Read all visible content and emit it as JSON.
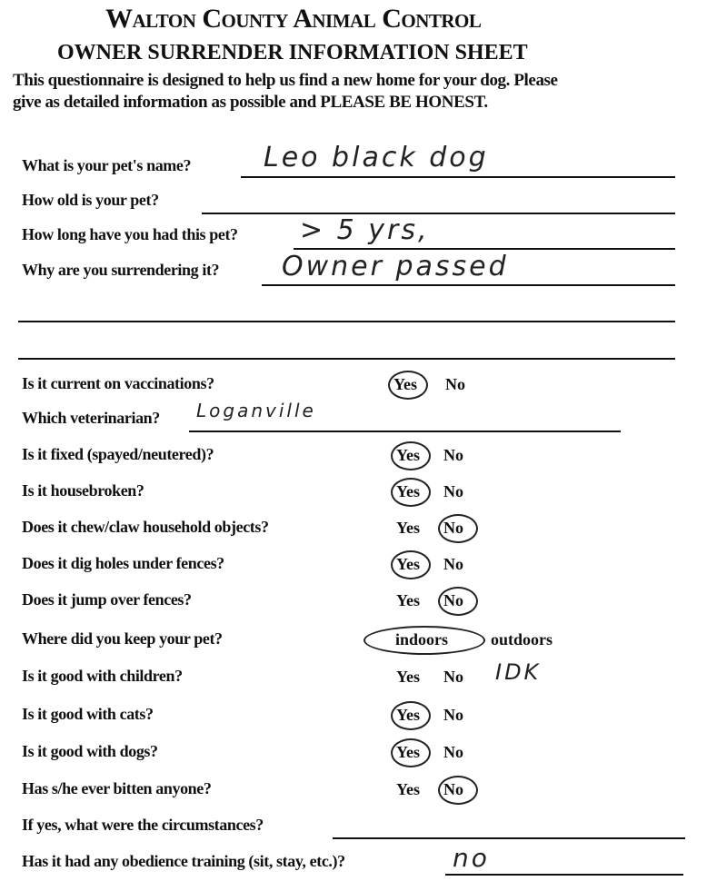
{
  "header": {
    "title": "Walton County Animal Control",
    "subtitle": "OWNER SURRENDER INFORMATION SHEET",
    "intro_line1": "This questionnaire is designed to help us find a new home for your dog.  Please",
    "intro_line2": "give as detailed information as possible and PLEASE BE HONEST."
  },
  "text_questions": [
    {
      "label": "What is your pet's name?",
      "answer": "Leo     black dog"
    },
    {
      "label": "How old is your pet?",
      "answer": ""
    },
    {
      "label": "How long have you had this pet?",
      "answer": "> 5 yrs,"
    },
    {
      "label": "Why are you surrendering it?",
      "answer": "Owner passed"
    }
  ],
  "choice_questions": [
    {
      "label": "Is it current on vaccinations?",
      "options": [
        "Yes",
        "No"
      ],
      "selected": "Yes"
    },
    {
      "label": "Which veterinarian?",
      "answer": "Loganville"
    },
    {
      "label": "Is it fixed (spayed/neutered)?",
      "options": [
        "Yes",
        "No"
      ],
      "selected": "Yes"
    },
    {
      "label": "Is it housebroken?",
      "options": [
        "Yes",
        "No"
      ],
      "selected": "Yes"
    },
    {
      "label": "Does it chew/claw household objects?",
      "options": [
        "Yes",
        "No"
      ],
      "selected": "No"
    },
    {
      "label": "Does it dig holes under fences?",
      "options": [
        "Yes",
        "No"
      ],
      "selected": "Yes"
    },
    {
      "label": "Does it jump over fences?",
      "options": [
        "Yes",
        "No"
      ],
      "selected": "No"
    },
    {
      "label": "Where did you keep your pet?",
      "options": [
        "indoors",
        "outdoors"
      ],
      "selected": "indoors"
    },
    {
      "label": "Is it good with children?",
      "options": [
        "Yes",
        "No"
      ],
      "selected": "",
      "note": "IDK"
    },
    {
      "label": "Is it good with cats?",
      "options": [
        "Yes",
        "No"
      ],
      "selected": "Yes"
    },
    {
      "label": "Is it good with dogs?",
      "options": [
        "Yes",
        "No"
      ],
      "selected": "Yes"
    },
    {
      "label": "Has s/he ever bitten anyone?",
      "options": [
        "Yes",
        "No"
      ],
      "selected": "No"
    },
    {
      "label": "If yes, what were the circumstances?",
      "answer": ""
    },
    {
      "label": "Has it had any obedience training (sit, stay, etc.)?",
      "answer": "no"
    }
  ]
}
